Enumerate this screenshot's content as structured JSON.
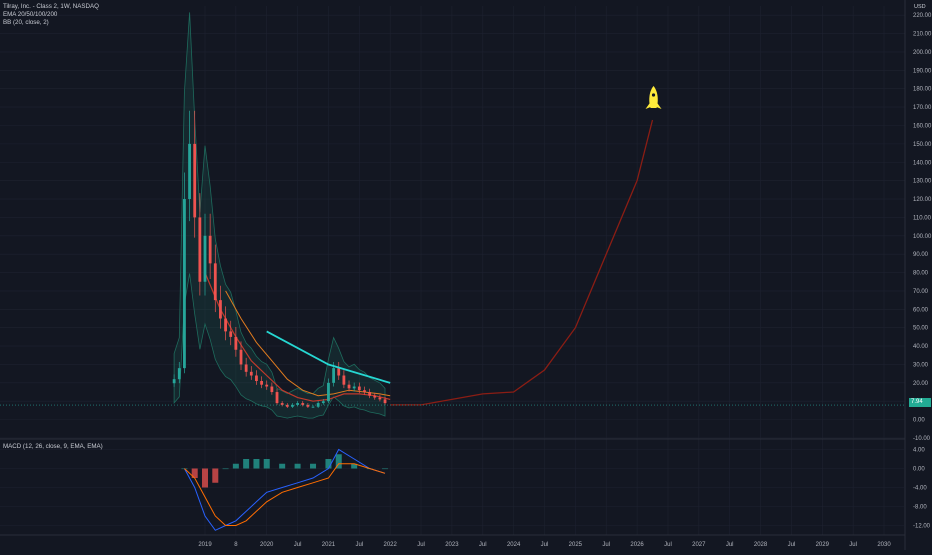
{
  "header": {
    "symbol_line": "Tilray, Inc. - Class 2, 1W, NASDAQ",
    "ema_label": "EMA 20/50/100/200",
    "bb_label": "BB (20, close, 2)",
    "macd_label": "MACD (12, 26, close, 9, EMA, EMA)",
    "currency": "USD",
    "price_tag": "7.94"
  },
  "colors": {
    "background": "#131722",
    "grid": "#1e2230",
    "up": "#26a69a",
    "down": "#ef5350",
    "bb_band": "#1e6b5d",
    "ema_red": "#c0392b",
    "ema_orange": "#e07b1f",
    "trend_cyan": "#26d7d2",
    "projection": "#8b1d14",
    "rocket": "#ffeb3b",
    "macd_line": "#2962ff",
    "signal_line": "#ff6d00"
  },
  "icons": {
    "rocket": "rocket-icon"
  },
  "chart_data": [
    {
      "type": "candlestick",
      "title": "",
      "y_scale": "linear",
      "grid": true,
      "x_ticks": [
        "2019",
        "8",
        "2020",
        "Jul",
        "2021",
        "Jul",
        "2022",
        "Jul",
        "2023",
        "Jul",
        "2024",
        "Jul",
        "2025",
        "Jul",
        "2026",
        "Jul",
        "2027",
        "Jul",
        "2028",
        "Jul",
        "2029",
        "Jul",
        "2030"
      ],
      "y_ticks": [
        "220.00",
        "210.00",
        "200.00",
        "190.00",
        "180.00",
        "170.00",
        "160.00",
        "150.00",
        "140.00",
        "130.00",
        "120.00",
        "110.00",
        "100.00",
        "90.00",
        "80.00",
        "70.00",
        "60.00",
        "50.00",
        "40.00",
        "30.00",
        "20.00",
        "10.00",
        "0.00",
        "-10.00"
      ],
      "ylim": [
        -10,
        225
      ],
      "current_price": 7.94,
      "price_series": {
        "date": [
          "2018-07",
          "2018-08",
          "2018-09",
          "2018-10",
          "2018-11",
          "2018-12",
          "2019-01",
          "2019-02",
          "2019-03",
          "2019-04",
          "2019-05",
          "2019-06",
          "2019-07",
          "2019-08",
          "2019-09",
          "2019-10",
          "2019-11",
          "2019-12",
          "2020-01",
          "2020-02",
          "2020-03",
          "2020-04",
          "2020-05",
          "2020-06",
          "2020-07",
          "2020-08",
          "2020-09",
          "2020-10",
          "2020-11",
          "2020-12",
          "2021-01",
          "2021-02",
          "2021-03",
          "2021-04",
          "2021-05",
          "2021-06",
          "2021-07",
          "2021-08",
          "2021-09",
          "2021-10",
          "2021-11",
          "2021-12"
        ],
        "close": [
          22,
          28,
          120,
          150,
          110,
          75,
          100,
          85,
          65,
          55,
          48,
          45,
          38,
          30,
          26,
          24,
          21,
          19,
          18,
          15,
          9,
          8,
          7,
          8,
          9,
          8,
          7,
          7,
          9,
          10,
          20,
          28,
          24,
          19,
          17,
          18,
          16,
          15,
          13,
          12,
          11,
          9
        ]
      },
      "ema_red": {
        "date": [
          "2019-01",
          "2019-04",
          "2019-07",
          "2019-10",
          "2020-01",
          "2020-04",
          "2020-07",
          "2020-10",
          "2021-01",
          "2021-04",
          "2021-07",
          "2021-10",
          "2022-01"
        ],
        "value": [
          80,
          60,
          45,
          32,
          24,
          16,
          12,
          10,
          11,
          14,
          14,
          13,
          11
        ]
      },
      "ema_orange": {
        "date": [
          "2019-05",
          "2019-08",
          "2019-11",
          "2020-02",
          "2020-05",
          "2020-08",
          "2020-11",
          "2021-02",
          "2021-05",
          "2021-08",
          "2021-11",
          "2022-01"
        ],
        "value": [
          70,
          55,
          42,
          32,
          22,
          16,
          13,
          14,
          16,
          15,
          14,
          13
        ]
      },
      "trendline": {
        "date": [
          "2020-01",
          "2021-01",
          "2022-01"
        ],
        "value": [
          48,
          30,
          20
        ]
      },
      "projection": {
        "date": [
          "2022-01",
          "2022-07",
          "2023-01",
          "2023-07",
          "2024-01",
          "2024-07",
          "2025-01",
          "2025-07",
          "2026-01",
          "2026-04"
        ],
        "value": [
          8,
          8,
          11,
          14,
          15,
          27,
          50,
          90,
          130,
          163
        ]
      }
    },
    {
      "type": "histogram",
      "title": "",
      "y_ticks": [
        "4.00",
        "0.00",
        "-4.00",
        "-8.00",
        "-12.00"
      ],
      "ylim": [
        -14,
        6
      ],
      "macd": {
        "date": [
          "2018-09",
          "2018-11",
          "2019-01",
          "2019-03",
          "2019-05",
          "2019-07",
          "2019-09",
          "2019-11",
          "2020-01",
          "2020-04",
          "2020-07",
          "2020-10",
          "2021-01",
          "2021-03",
          "2021-06",
          "2021-09",
          "2021-12"
        ],
        "value": [
          0,
          -4,
          -10,
          -13,
          -12,
          -11,
          -9,
          -7,
          -5,
          -4,
          -3,
          -2,
          0,
          4,
          2,
          0,
          -1
        ]
      },
      "signal": {
        "date": [
          "2018-09",
          "2018-11",
          "2019-01",
          "2019-03",
          "2019-05",
          "2019-07",
          "2019-09",
          "2019-11",
          "2020-01",
          "2020-04",
          "2020-07",
          "2020-10",
          "2021-01",
          "2021-03",
          "2021-06",
          "2021-09",
          "2021-12"
        ],
        "value": [
          0,
          -2,
          -6,
          -10,
          -12,
          -12,
          -11,
          -9,
          -7,
          -5,
          -4,
          -3,
          -2,
          1,
          1,
          0,
          -1
        ]
      }
    }
  ]
}
